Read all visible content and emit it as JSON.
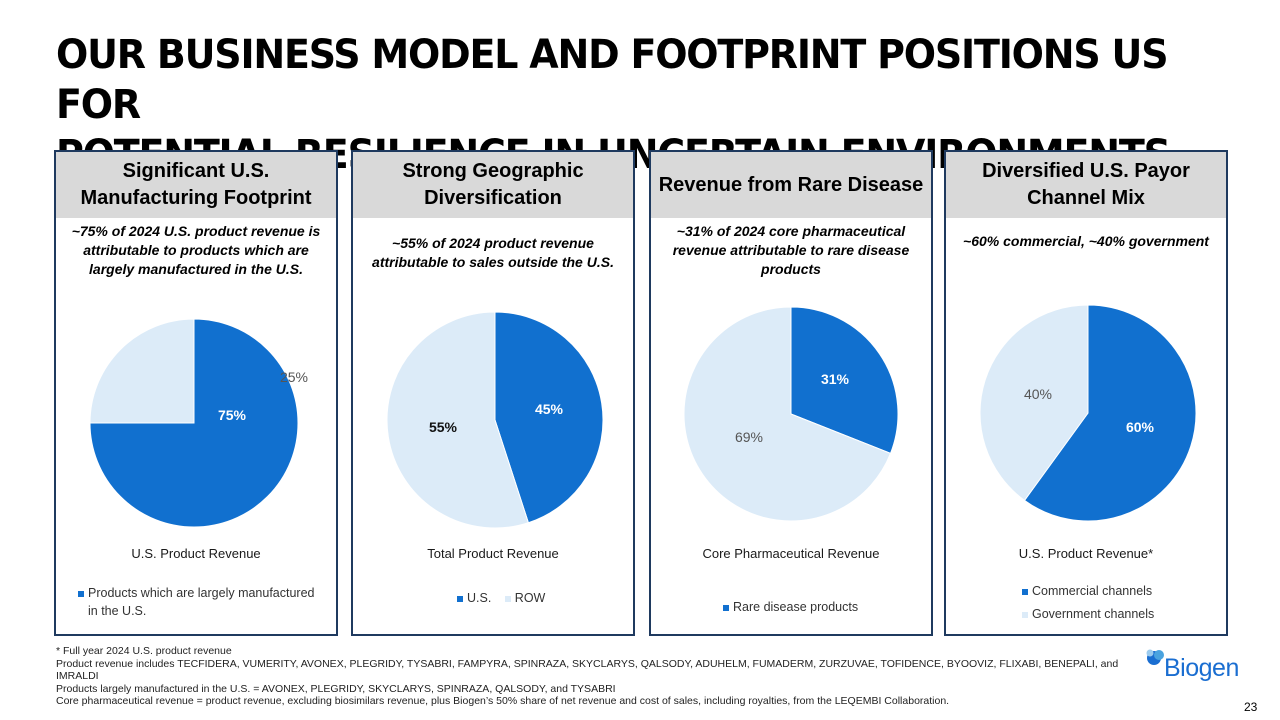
{
  "page": {
    "title_line1": "OUR BUSINESS MODEL AND FOOTPRINT POSITIONS US FOR",
    "title_line2": "POTENTIAL RESILIENCE IN UNCERTAIN ENVIRONMENTS",
    "page_number": "23",
    "logo_text": "Biogen"
  },
  "colors": {
    "dark": "#1170cf",
    "light": "#dcebf8",
    "border": "#1f3a5f"
  },
  "panels": [
    {
      "header": "Significant U.S. Manufacturing Footprint",
      "subtitle": "~75% of 2024 U.S. product revenue is attributable to products which are largely manufactured in the U.S.",
      "legend": [
        {
          "label": "Products which are largely manufactured in the U.S.",
          "color": "dark"
        }
      ]
    },
    {
      "header": "Strong Geographic Diversification",
      "subtitle": "~55% of 2024 product revenue attributable to sales outside the U.S.",
      "legend": [
        {
          "label": "U.S.",
          "color": "dark"
        },
        {
          "label": "ROW",
          "color": "light"
        }
      ]
    },
    {
      "header": "Revenue from Rare Disease",
      "subtitle": "~31% of 2024 core pharmaceutical revenue attributable to rare disease products",
      "legend": [
        {
          "label": "Rare disease products",
          "color": "dark"
        }
      ]
    },
    {
      "header": "Diversified U.S. Payor Channel Mix",
      "subtitle": "~60% commercial, ~40% government",
      "legend": [
        {
          "label": "Commercial channels",
          "color": "dark"
        },
        {
          "label": "Government channels",
          "color": "light"
        }
      ]
    }
  ],
  "chart_data": [
    {
      "type": "pie",
      "title": "U.S. Product Revenue",
      "slices": [
        {
          "name": "Products which are largely manufactured in the U.S.",
          "value": 75,
          "label": "75%",
          "color": "dark"
        },
        {
          "name": "Other",
          "value": 25,
          "label": "25%",
          "color": "light"
        }
      ]
    },
    {
      "type": "pie",
      "title": "Total Product Revenue",
      "slices": [
        {
          "name": "U.S.",
          "value": 45,
          "label": "45%",
          "color": "dark"
        },
        {
          "name": "ROW",
          "value": 55,
          "label": "55%",
          "color": "light"
        }
      ]
    },
    {
      "type": "pie",
      "title": "Core Pharmaceutical Revenue",
      "slices": [
        {
          "name": "Rare disease products",
          "value": 31,
          "label": "31%",
          "color": "dark"
        },
        {
          "name": "Other",
          "value": 69,
          "label": "69%",
          "color": "light"
        }
      ]
    },
    {
      "type": "pie",
      "title": "U.S. Product Revenue*",
      "slices": [
        {
          "name": "Commercial channels",
          "value": 60,
          "label": "60%",
          "color": "dark"
        },
        {
          "name": "Government channels",
          "value": 40,
          "label": "40%",
          "color": "light"
        }
      ]
    }
  ],
  "footnotes": [
    "* Full year 2024 U.S. product revenue",
    "Product revenue includes TECFIDERA, VUMERITY, AVONEX, PLEGRIDY, TYSABRI, FAMPYRA, SPINRAZA, SKYCLARYS, QALSODY, ADUHELM, FUMADERM, ZURZUVAE, TOFIDENCE, BYOOVIZ, FLIXABI, BENEPALI, and IMRALDI",
    "Products largely manufactured in the U.S. = AVONEX, PLEGRIDY, SKYCLARYS, SPINRAZA, QALSODY, and TYSABRI",
    "Core pharmaceutical revenue = product revenue, excluding biosimilars revenue, plus Biogen’s 50% share of net revenue and cost of sales, including royalties, from the LEQEMBI Collaboration."
  ]
}
